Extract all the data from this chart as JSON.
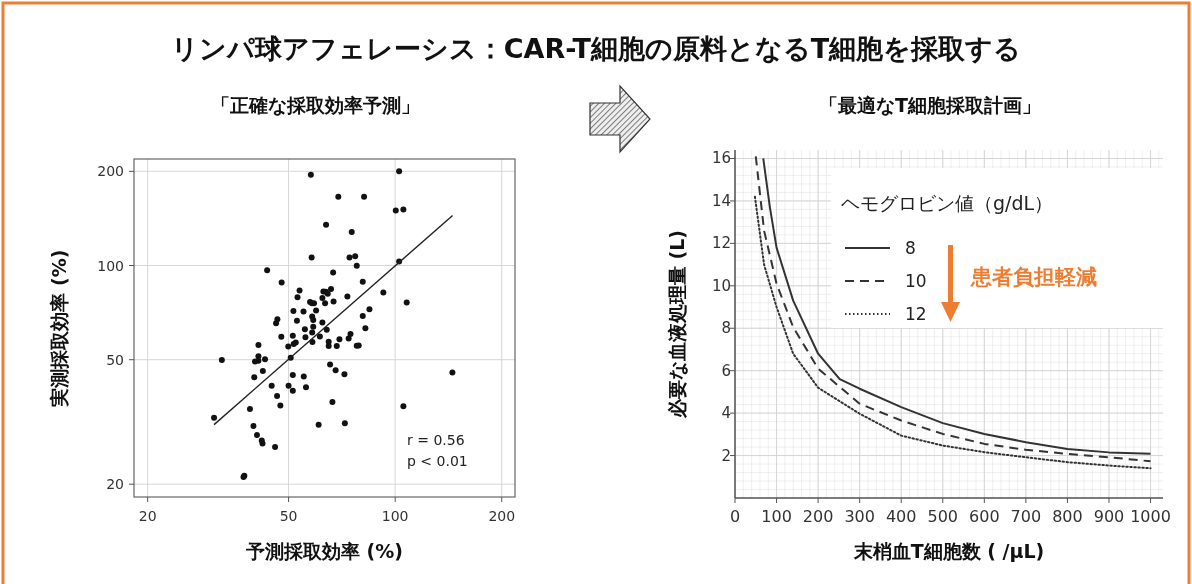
{
  "chart_data": [
    {
      "type": "scatter",
      "title": "リンパ球アフェレーシス：CAR-T細胞の原料となるT細胞を採取する",
      "subtitle": "「正確な採取効率予測」",
      "xlabel": "予測採取効率 (%)",
      "ylabel": "実測採取効率 (%)",
      "log": "xy",
      "xlim": [
        18.3,
        218
      ],
      "ylim": [
        18.2,
        219
      ],
      "xticks": [
        20,
        50,
        100,
        200
      ],
      "yticks": [
        20,
        50,
        100,
        200
      ],
      "grid": true,
      "marker": "circle",
      "annotations": [
        "r = 0.56",
        "p < 0.01"
      ],
      "series": [
        {
          "color": "#111111",
          "x": [
            30.8,
            32.4,
            37.3,
            37.5,
            38.9,
            39.8,
            40.0,
            40.2,
            40.7,
            41.1,
            41.1,
            41.1,
            42.0,
            42.2,
            42.3,
            42.9,
            43.5,
            44.8,
            45.8,
            46.1,
            46.4,
            46.5,
            47.4,
            47.7,
            47.8,
            49.9,
            50.0,
            50.7,
            51.4,
            51.4,
            51.4,
            51.6,
            51.7,
            52.4,
            52.8,
            53.0,
            53.7,
            55.1,
            55.2,
            55.6,
            55.8,
            56.0,
            57.5,
            57.8,
            58.1,
            58.2,
            58.3,
            58.3,
            58.4,
            59.0,
            58.7,
            58.7,
            59.8,
            60.8,
            61.3,
            62.3,
            62.3,
            62.7,
            63.4,
            63.7,
            63.8,
            64.1,
            64.5,
            64.9,
            64.9,
            65.5,
            65.9,
            66.5,
            66.8,
            67.0,
            67.9,
            68.4,
            69.1,
            69.6,
            71.9,
            72.1,
            73.3,
            73.9,
            74.3,
            74.8,
            75.4,
            77.1,
            77.9,
            77.9,
            78.9,
            81.0,
            81.0,
            81.7,
            82.4,
            84.6,
            92.6,
            100.4,
            102.6,
            102.6,
            105.5,
            105.5,
            107.8,
            145.1
          ],
          "values": [
            32.6,
            49.9,
            21.1,
            21.3,
            34.8,
            30.7,
            43.9,
            49.3,
            28.7,
            55.7,
            51.3,
            49.6,
            27.6,
            27.0,
            46.0,
            50.2,
            96.6,
            41.3,
            26.3,
            65.4,
            38.3,
            67.3,
            35.7,
            59.2,
            88.3,
            55.1,
            41.3,
            50.7,
            59.6,
            44.7,
            39.8,
            71.6,
            56.1,
            56.7,
            66.6,
            79.2,
            83.2,
            71.3,
            44.2,
            62.6,
            59.0,
            40.8,
            76.5,
            195,
            106,
            75.8,
            68.7,
            61.1,
            56.9,
            75.8,
            67.0,
            63.7,
            71.8,
            31.0,
            59.3,
            65.8,
            78.7,
            82.6,
            75.8,
            82.4,
            135,
            62.3,
            81.3,
            57.1,
            55.3,
            48.3,
            84.2,
            36.6,
            95.0,
            76.7,
            46.3,
            55.3,
            166,
            58.1,
            44.9,
            31.3,
            79.6,
            58.4,
            106,
            60.4,
            128,
            107,
            99.8,
            55.4,
            55.5,
            88.7,
            69.0,
            166,
            63.0,
            72.5,
            82.0,
            150,
            200,
            103,
            151,
            35.5,
            76.2,
            45.5
          ]
        },
        {
          "type": "line",
          "color": "#222222",
          "marker": "none",
          "x": [
            30.8,
            145.3
          ],
          "values": [
            31.0,
            144.5
          ]
        }
      ]
    },
    {
      "type": "line",
      "title": "「最適なT細胞採取計画」",
      "xlabel": "末梢血T細胞数 ( /μL)",
      "ylabel": "必要な血液処理量 (L)",
      "xlim": [
        0,
        1030
      ],
      "ylim": [
        0,
        16.4
      ],
      "xticks": [
        0,
        100,
        200,
        300,
        400,
        500,
        600,
        700,
        800,
        900,
        1000
      ],
      "yticks": [
        2,
        4,
        6,
        8,
        10,
        12,
        14,
        16
      ],
      "grid": true,
      "legend": "top",
      "legend_title": "ヘモグロビン値（g/dL）",
      "marker": "none",
      "annotations": [
        "患者負担軽減"
      ],
      "series": [
        {
          "name": "8",
          "color": "#333333",
          "line_style": "solid",
          "x": [
            68,
            84,
            100,
            140,
            200,
            252,
            300,
            400,
            500,
            600,
            700,
            800,
            900,
            1000
          ],
          "values": [
            16.0,
            13.7,
            11.8,
            9.3,
            6.8,
            5.6,
            5.15,
            4.28,
            3.53,
            3.02,
            2.63,
            2.31,
            2.15,
            2.08
          ]
        },
        {
          "name": "10",
          "color": "#333333",
          "line_style": "dashed",
          "x": [
            50,
            70,
            100,
            140,
            200,
            300,
            400,
            500,
            600,
            700,
            800,
            900,
            1000
          ],
          "values": [
            16.1,
            12.6,
            10.1,
            8.05,
            6.1,
            4.44,
            3.65,
            3.02,
            2.55,
            2.27,
            2.08,
            1.92,
            1.73
          ]
        },
        {
          "name": "12",
          "color": "#333333",
          "line_style": "dotted",
          "x": [
            48,
            70,
            100,
            140,
            200,
            300,
            400,
            500,
            600,
            700,
            800,
            900,
            1000
          ],
          "values": [
            14.2,
            11.0,
            9.0,
            6.8,
            5.2,
            3.97,
            2.94,
            2.47,
            2.16,
            1.92,
            1.69,
            1.53,
            1.4
          ]
        }
      ]
    }
  ]
}
